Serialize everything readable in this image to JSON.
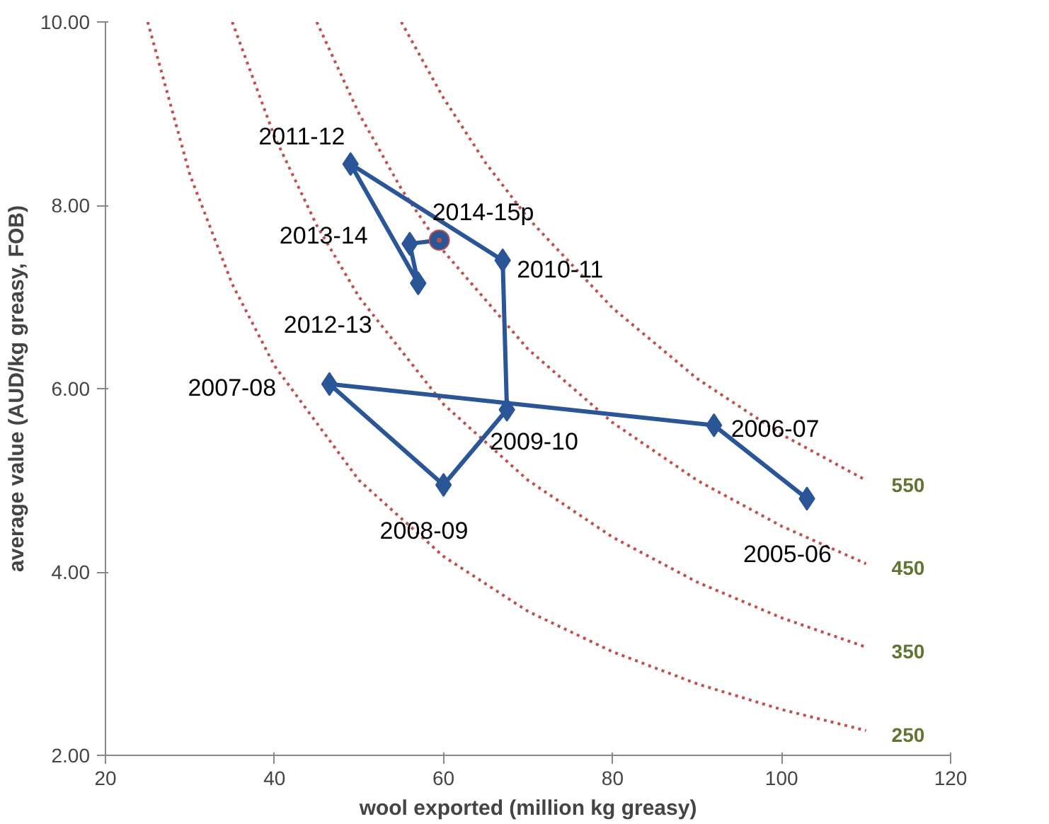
{
  "chart_data": {
    "type": "line",
    "xlabel": "wool exported (million kg greasy)",
    "ylabel": "average value (AUD/kg greasy, FOB)",
    "xlim": [
      20,
      120
    ],
    "ylim": [
      2,
      10
    ],
    "xticks": [
      20,
      40,
      60,
      80,
      100,
      120
    ],
    "yticks": [
      {
        "value": 2,
        "label": "2.00"
      },
      {
        "value": 4,
        "label": "4.00"
      },
      {
        "value": 6,
        "label": "6.00"
      },
      {
        "value": 8,
        "label": "8.00"
      },
      {
        "value": 10,
        "label": "10.00"
      }
    ],
    "series": [
      {
        "color": "#c0504d",
        "line_style": "dotted",
        "marker": "none",
        "x": [
          25,
          30,
          35,
          40,
          50,
          60,
          70,
          80,
          90,
          100,
          110
        ],
        "values": [
          10,
          8.33,
          7.14,
          6.25,
          5,
          4.17,
          3.57,
          3.13,
          2.78,
          2.5,
          2.27
        ]
      },
      {
        "color": "#c0504d",
        "line_style": "dotted",
        "marker": "none",
        "x": [
          35,
          40,
          45,
          50,
          60,
          70,
          80,
          90,
          100,
          110
        ],
        "values": [
          10,
          8.75,
          7.78,
          7,
          5.83,
          5,
          4.38,
          3.89,
          3.5,
          3.18
        ]
      },
      {
        "color": "#c0504d",
        "line_style": "dotted",
        "marker": "none",
        "x": [
          45,
          50,
          55,
          60,
          70,
          80,
          90,
          100,
          110
        ],
        "values": [
          10,
          9,
          8.18,
          7.5,
          6.43,
          5.63,
          5,
          4.5,
          4.09
        ]
      },
      {
        "color": "#c0504d",
        "line_style": "dotted",
        "marker": "none",
        "x": [
          55,
          60,
          65,
          70,
          80,
          90,
          100,
          110
        ],
        "values": [
          10,
          9.17,
          8.46,
          7.86,
          6.88,
          6.11,
          5.5,
          5
        ]
      },
      {
        "color": "#2a5597",
        "line_style": "solid",
        "marker": "diamond",
        "x": [
          103,
          92,
          46.5,
          60,
          67.5,
          67,
          49,
          57,
          56
        ],
        "values": [
          4.8,
          5.6,
          6.05,
          4.95,
          5.77,
          7.4,
          8.45,
          7.15,
          7.58
        ]
      },
      {
        "color": "#2a5597",
        "line_style": "solid",
        "marker": "none",
        "x": [
          56,
          59.5
        ],
        "values": [
          7.58,
          7.62
        ]
      },
      {
        "type": "scatter",
        "color": "#2a5597",
        "marker": "circle",
        "x": [
          59.5
        ],
        "values": [
          7.62
        ]
      }
    ],
    "annotations": [
      {
        "text": "2005-06",
        "x": 103,
        "y": 4.8
      },
      {
        "text": "2006-07",
        "x": 92,
        "y": 5.6
      },
      {
        "text": "2007-08",
        "x": 46.5,
        "y": 6.05
      },
      {
        "text": "2008-09",
        "x": 60,
        "y": 4.95
      },
      {
        "text": "2009-10",
        "x": 67.5,
        "y": 5.77
      },
      {
        "text": "2010-11",
        "x": 67,
        "y": 7.4
      },
      {
        "text": "2011-12",
        "x": 49,
        "y": 8.45
      },
      {
        "text": "2012-13",
        "x": 57,
        "y": 7.15
      },
      {
        "text": "2013-14",
        "x": 56,
        "y": 7.58
      },
      {
        "text": "2014-15p",
        "x": 59.5,
        "y": 7.62
      },
      {
        "text": "250",
        "x": 110,
        "y": 2.27
      },
      {
        "text": "350",
        "x": 110,
        "y": 3.18
      },
      {
        "text": "450",
        "x": 110,
        "y": 4.09
      },
      {
        "text": "550",
        "x": 110,
        "y": 5
      }
    ]
  }
}
